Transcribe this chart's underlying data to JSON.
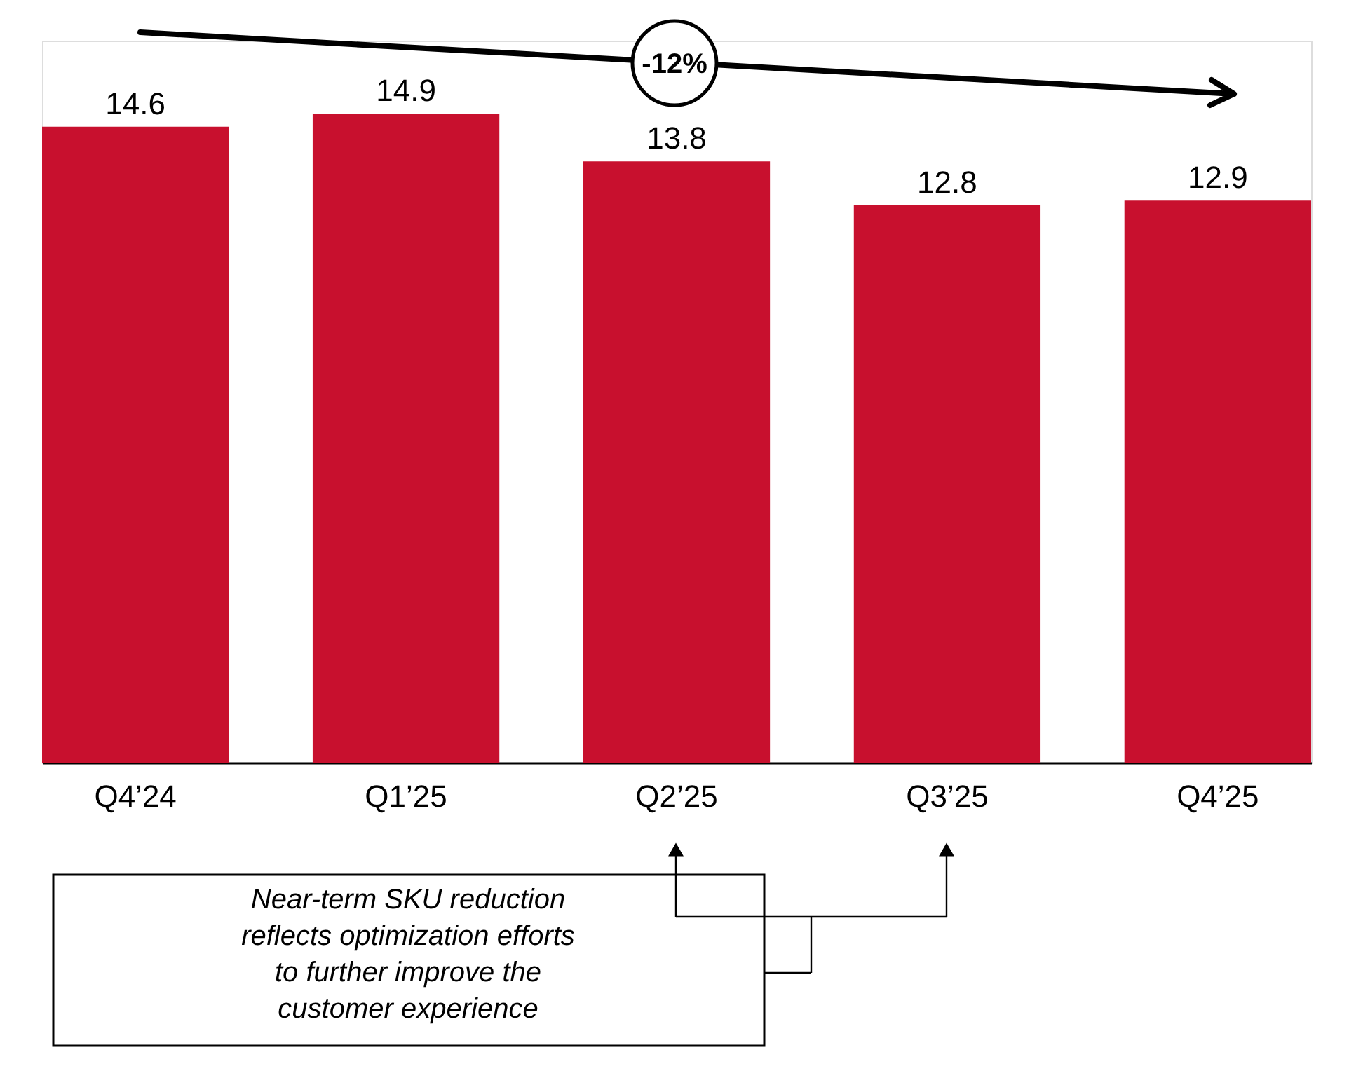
{
  "chart_data": {
    "type": "bar",
    "categories": [
      "Q4’24",
      "Q1’25",
      "Q2’25",
      "Q3’25",
      "Q4’25"
    ],
    "values": [
      14.6,
      14.9,
      13.8,
      12.8,
      12.9
    ],
    "color": "#c8102e",
    "data_labels": true,
    "annotations": [
      "-12%",
      "Near-term SKU reduction reflects optimization efforts to further improve the customer experience"
    ]
  }
}
